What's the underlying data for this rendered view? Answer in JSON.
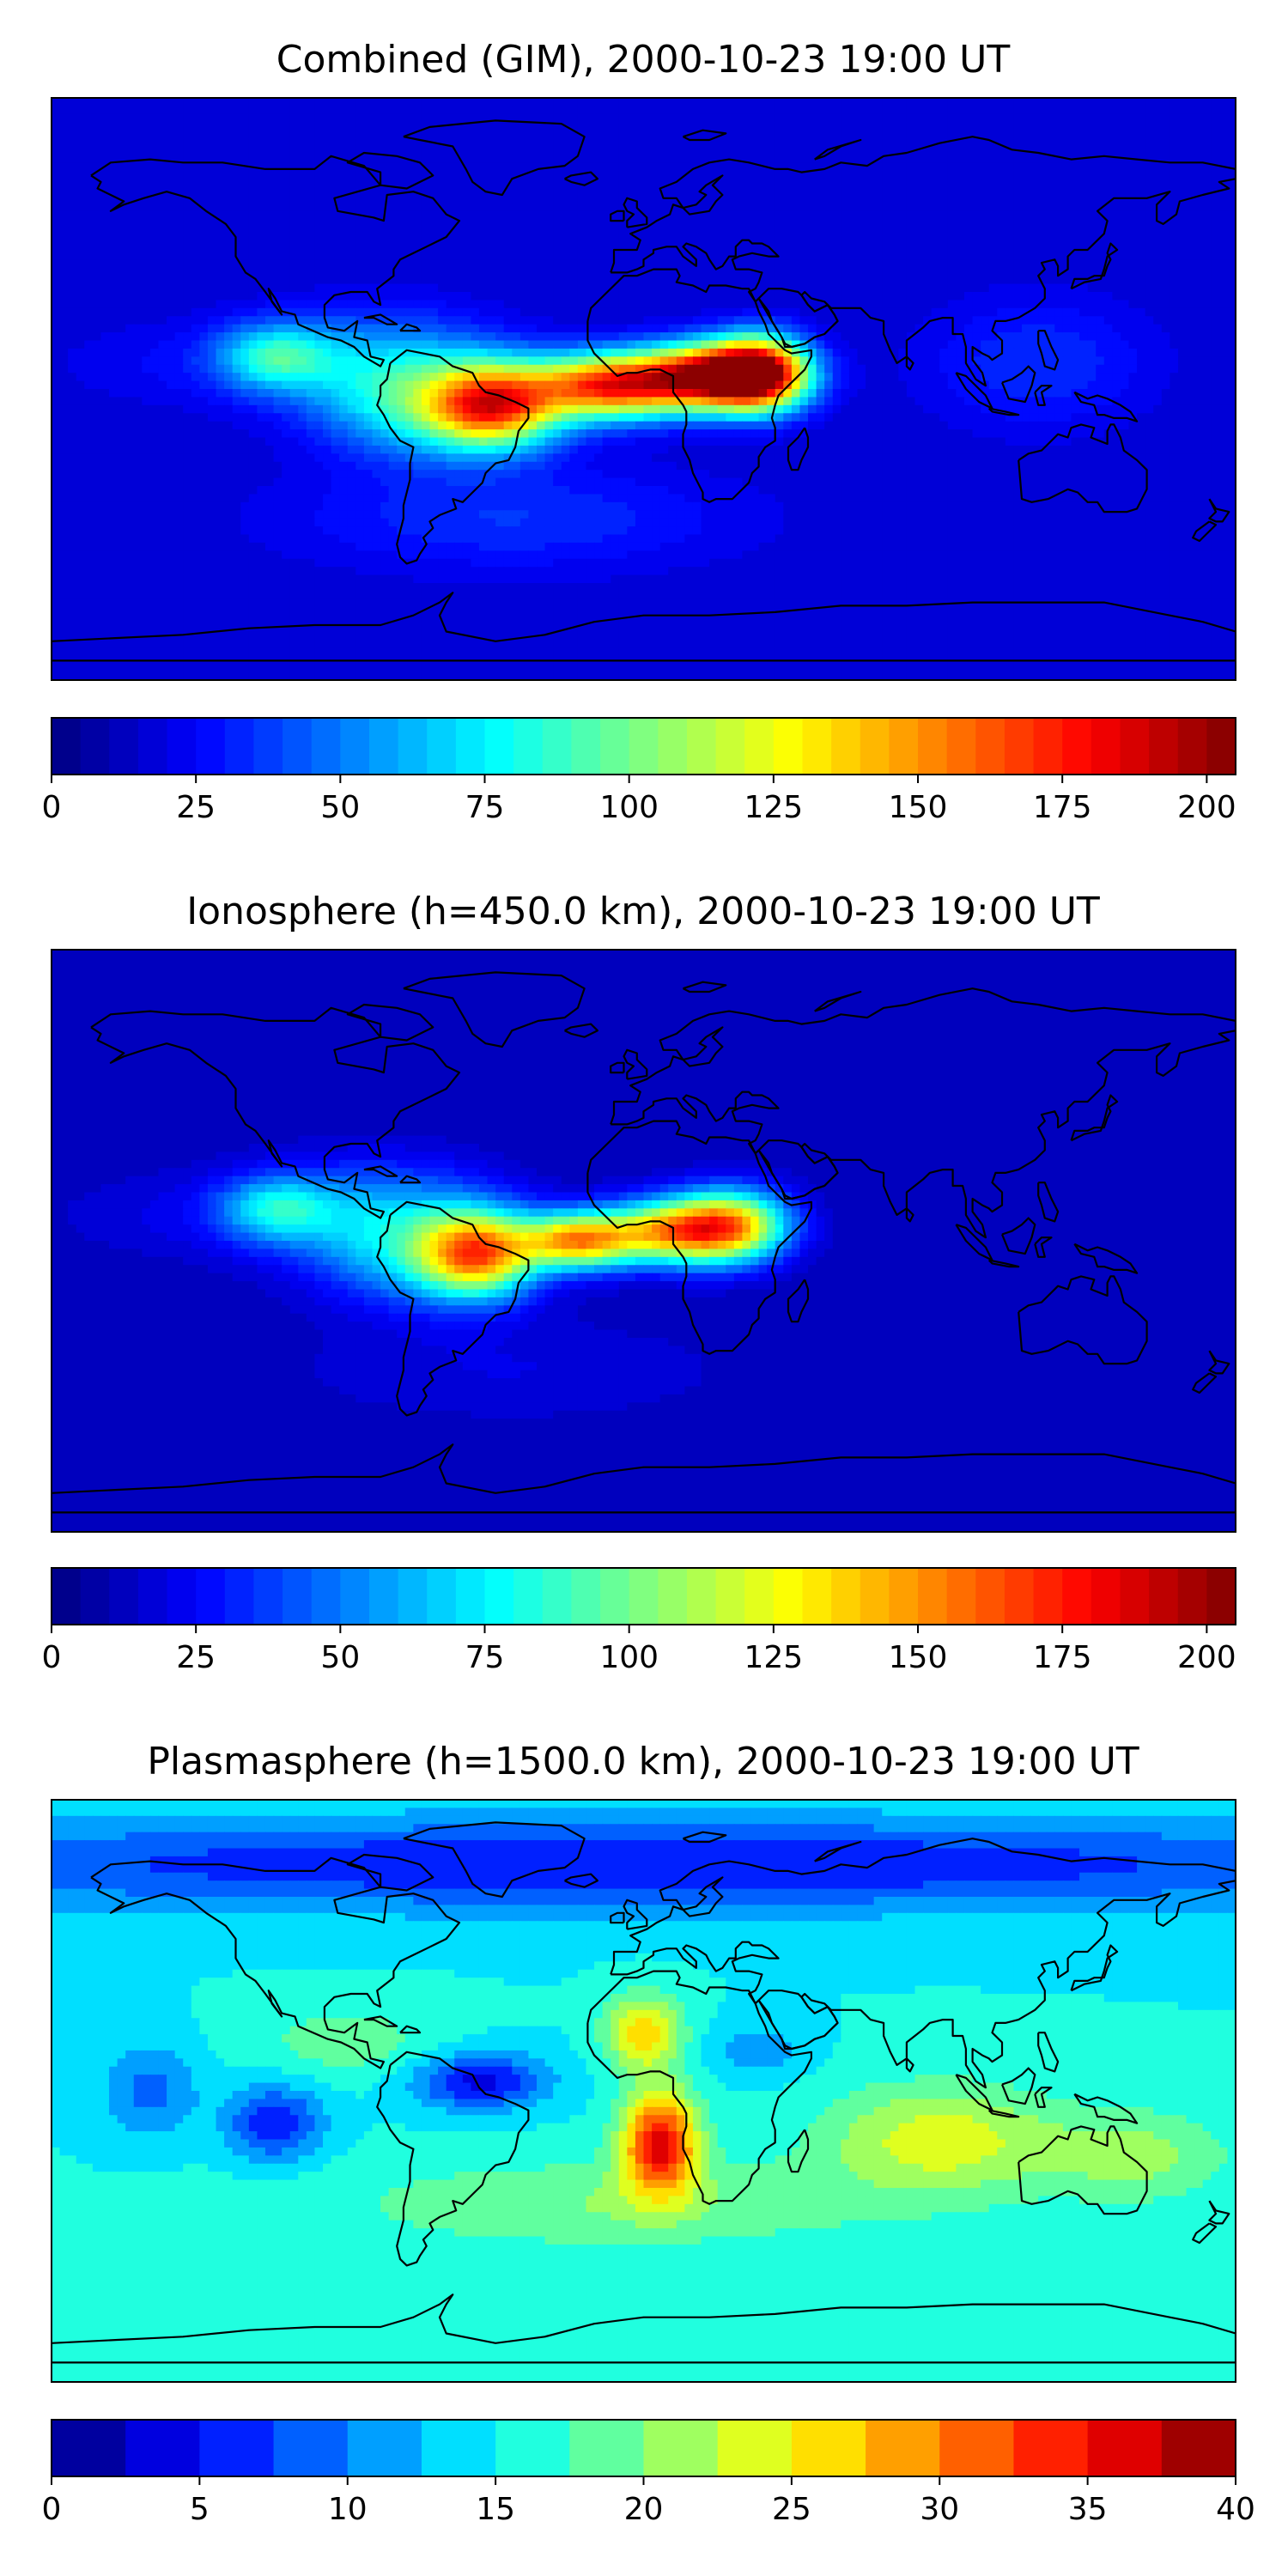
{
  "chart_data": [
    {
      "type": "heatmap",
      "title": "Combined (GIM), 2000-10-23 19:00 UT",
      "colormap": "jet",
      "levels": {
        "min": 0,
        "max": 205,
        "step": 5
      },
      "colorbar_ticks": [
        0,
        25,
        50,
        75,
        100,
        125,
        150,
        175,
        200
      ],
      "colorbar_tick_labels": [
        "0",
        "25",
        "50",
        "75",
        "100",
        "125",
        "150",
        "175",
        "200"
      ],
      "background_level": 15,
      "features": [
        {
          "lon": -80,
          "lat": 8,
          "amp": 40,
          "slon": 25,
          "slat": 12
        },
        {
          "lon": -112,
          "lat": 10,
          "amp": 55,
          "slon": 12,
          "slat": 7
        },
        {
          "lon": -68,
          "lat": -6,
          "amp": 50,
          "slon": 20,
          "slat": 11
        },
        {
          "lon": -45,
          "lat": -5,
          "amp": 135,
          "slon": 14,
          "slat": 9
        },
        {
          "lon": -10,
          "lat": 1,
          "amp": 150,
          "slon": 16,
          "slat": 7
        },
        {
          "lon": 22,
          "lat": 4,
          "amp": 175,
          "slon": 15,
          "slat": 7
        },
        {
          "lon": 36,
          "lat": 5,
          "amp": 130,
          "slon": 10,
          "slat": 8
        },
        {
          "lon": -140,
          "lat": 8,
          "amp": 10,
          "slon": 30,
          "slat": 10
        },
        {
          "lon": 120,
          "lat": 8,
          "amp": 20,
          "slon": 25,
          "slat": 15
        },
        {
          "lon": -40,
          "lat": -40,
          "amp": 20,
          "slon": 50,
          "slat": 12
        }
      ]
    },
    {
      "type": "heatmap",
      "title": "Ionosphere  (h=450.0 km), 2000-10-23 19:00 UT",
      "colormap": "jet",
      "levels": {
        "min": 0,
        "max": 205,
        "step": 5
      },
      "colorbar_ticks": [
        0,
        25,
        50,
        75,
        100,
        125,
        150,
        175,
        200
      ],
      "colorbar_tick_labels": [
        "0",
        "25",
        "50",
        "75",
        "100",
        "125",
        "150",
        "175",
        "200"
      ],
      "background_level": 10,
      "features": [
        {
          "lon": -80,
          "lat": 8,
          "amp": 45,
          "slon": 25,
          "slat": 12
        },
        {
          "lon": -112,
          "lat": 10,
          "amp": 50,
          "slon": 12,
          "slat": 7
        },
        {
          "lon": -68,
          "lat": -6,
          "amp": 40,
          "slon": 20,
          "slat": 11
        },
        {
          "lon": -50,
          "lat": -4,
          "amp": 120,
          "slon": 12,
          "slat": 9
        },
        {
          "lon": -20,
          "lat": 0,
          "amp": 125,
          "slon": 12,
          "slat": 6
        },
        {
          "lon": 10,
          "lat": 3,
          "amp": 125,
          "slon": 15,
          "slat": 7
        },
        {
          "lon": 28,
          "lat": 5,
          "amp": 95,
          "slon": 12,
          "slat": 8
        },
        {
          "lon": -140,
          "lat": 8,
          "amp": 10,
          "slon": 30,
          "slat": 10
        },
        {
          "lon": -40,
          "lat": -40,
          "amp": 10,
          "slon": 50,
          "slat": 12
        }
      ]
    },
    {
      "type": "heatmap",
      "title": "Plasmasphere (h=1500.0 km), 2000-10-23 19:00 UT",
      "colormap": "jet",
      "levels": {
        "min": 0,
        "max": 40,
        "step": 2.5
      },
      "colorbar_ticks": [
        0,
        5,
        10,
        15,
        20,
        25,
        30,
        35,
        40
      ],
      "colorbar_tick_labels": [
        "0",
        "5",
        "10",
        "15",
        "20",
        "25",
        "30",
        "35",
        "40"
      ],
      "background_level": 15,
      "features": [
        {
          "lon": 0,
          "lat": 70,
          "amp": -10,
          "slon": 200,
          "slat": 10
        },
        {
          "lon": -112,
          "lat": -10,
          "amp": -10,
          "slon": 10,
          "slat": 8
        },
        {
          "lon": -150,
          "lat": 0,
          "amp": -6,
          "slon": 10,
          "slat": 10
        },
        {
          "lon": -50,
          "lat": 3,
          "amp": -11,
          "slon": 14,
          "slat": 6
        },
        {
          "lon": 35,
          "lat": 12,
          "amp": -4,
          "slon": 10,
          "slat": 6
        },
        {
          "lon": 5,
          "lat": -16,
          "amp": 21,
          "slon": 8,
          "slat": 11
        },
        {
          "lon": 0,
          "lat": 18,
          "amp": 12,
          "slon": 8,
          "slat": 8
        },
        {
          "lon": 90,
          "lat": -15,
          "amp": 9,
          "slon": 25,
          "slat": 12
        },
        {
          "lon": 150,
          "lat": -20,
          "amp": 6,
          "slon": 20,
          "slat": 10
        },
        {
          "lon": -10,
          "lat": -35,
          "amp": 5,
          "slon": 60,
          "slat": 10
        },
        {
          "lon": -90,
          "lat": 15,
          "amp": 4,
          "slon": 20,
          "slat": 8
        }
      ]
    }
  ]
}
